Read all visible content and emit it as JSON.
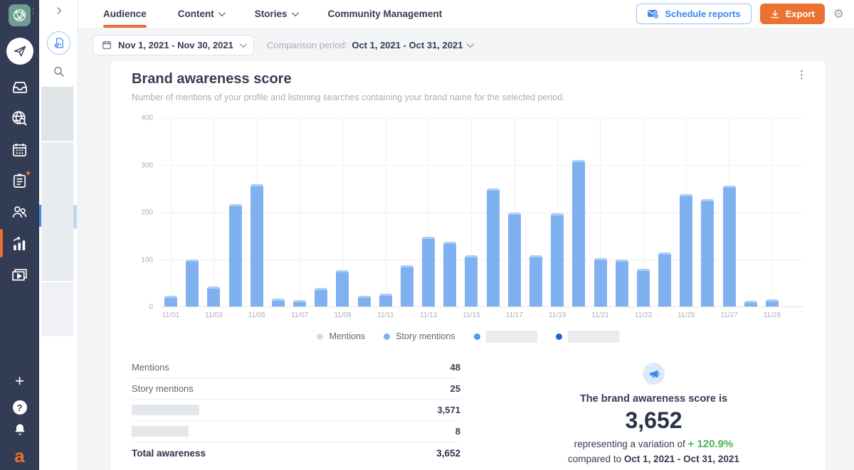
{
  "sidebar": {
    "icons": [
      "workspace-logo",
      "menu-dots",
      "publish-plane",
      "inbox",
      "listening-search",
      "calendar",
      "planner-notes",
      "team-members",
      "analytics-chart",
      "media-library"
    ],
    "active_icon": "analytics-chart",
    "bottom_icons": [
      "add-new",
      "help",
      "notifications",
      "brand-logo"
    ],
    "brand_letter": "a"
  },
  "rail": {
    "icons": [
      "expand-chevron",
      "report-document",
      "search"
    ],
    "accent_color": "#4a90e2"
  },
  "header": {
    "tabs": [
      {
        "label": "Audience",
        "active": true,
        "dropdown": false
      },
      {
        "label": "Content",
        "active": false,
        "dropdown": true
      },
      {
        "label": "Stories",
        "active": false,
        "dropdown": true
      },
      {
        "label": "Community Management",
        "active": false,
        "dropdown": false
      }
    ],
    "schedule_button": "Schedule reports",
    "export_button": "Export",
    "accent_orange": "#eb7231",
    "accent_blue": "#3c87ee"
  },
  "filters": {
    "date_range": "Nov 1, 2021 - Nov 30, 2021",
    "comparison_label": "Comparison period:",
    "comparison_value": "Oct 1, 2021 - Oct 31, 2021"
  },
  "card": {
    "title": "Brand awareness score",
    "subtitle": "Number of mentions of your profile and listening searches containing your brand name for the selected period."
  },
  "chart_data": {
    "type": "bar",
    "title": "Brand awareness score",
    "categories": [
      "11/01",
      "11/02",
      "11/03",
      "11/04",
      "11/05",
      "11/06",
      "11/07",
      "11/08",
      "11/09",
      "11/10",
      "11/11",
      "11/12",
      "11/13",
      "11/14",
      "11/15",
      "11/16",
      "11/17",
      "11/18",
      "11/19",
      "11/20",
      "11/21",
      "11/22",
      "11/23",
      "11/24",
      "11/25",
      "11/26",
      "11/27",
      "11/28",
      "11/29",
      "11/30"
    ],
    "values": [
      22,
      100,
      42,
      218,
      259,
      16,
      14,
      39,
      77,
      22,
      27,
      88,
      148,
      138,
      108,
      251,
      200,
      108,
      198,
      311,
      103,
      100,
      80,
      115,
      238,
      228,
      256,
      12,
      15,
      0
    ],
    "xlabel": "",
    "ylabel": "",
    "ylim": [
      0,
      400
    ],
    "yticks": [
      0,
      100,
      200,
      300,
      400
    ],
    "xticks": [
      "11/01",
      "11/03",
      "11/05",
      "11/07",
      "11/09",
      "11/11",
      "11/13",
      "11/15",
      "11/17",
      "11/19",
      "11/21",
      "11/23",
      "11/25",
      "11/27",
      "11/29"
    ],
    "grid": true,
    "bar_color": "#7fb1f1",
    "legend_position": "bottom",
    "legend": [
      {
        "label": "Mentions",
        "color": "#c9dcf8",
        "redacted": false
      },
      {
        "label": "Story mentions",
        "color": "#7fb1f1",
        "redacted": false
      },
      {
        "label": "",
        "color": "#4d96f5",
        "redacted": true
      },
      {
        "label": "",
        "color": "#1e63d6",
        "redacted": true
      }
    ]
  },
  "table": {
    "rows": [
      {
        "label": "Mentions",
        "value": "48",
        "redacted": false,
        "bold": false
      },
      {
        "label": "Story mentions",
        "value": "25",
        "redacted": false,
        "bold": false
      },
      {
        "label": "",
        "value": "3,571",
        "redacted": true,
        "bold": false
      },
      {
        "label": "",
        "value": "8",
        "redacted": true,
        "bold": false
      },
      {
        "label": "Total awareness",
        "value": "3,652",
        "redacted": false,
        "bold": true
      }
    ]
  },
  "summary": {
    "icon": "megaphone-icon",
    "heading": "The brand awareness score is",
    "score": "3,652",
    "variation_prefix": "representing a variation of",
    "variation": "+ 120.9%",
    "variation_color": "#4fb254",
    "compare_prefix": "compared to",
    "compare_period": "Oct 1, 2021 - Oct 31, 2021"
  }
}
